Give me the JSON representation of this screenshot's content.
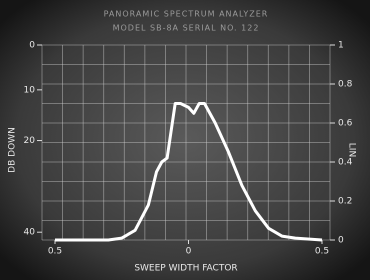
{
  "chart_data": {
    "type": "line",
    "title": "PANORAMIC SPECTRUM ANALYZER",
    "subtitle": "MODEL SB-8A  SERIAL NO. 122",
    "x_label": "SWEEP WIDTH FACTOR",
    "y_label": "LIN",
    "y2_label": "DB DOWN",
    "x": [
      -0.5,
      -0.3,
      -0.25,
      -0.2,
      -0.15,
      -0.12,
      -0.1,
      -0.08,
      -0.05,
      -0.03,
      0,
      0.02,
      0.04,
      0.06,
      0.1,
      0.15,
      0.2,
      0.25,
      0.3,
      0.35,
      0.4,
      0.5
    ],
    "values": [
      0,
      0,
      0.01,
      0.05,
      0.18,
      0.35,
      0.4,
      0.42,
      0.7,
      0.7,
      0.68,
      0.65,
      0.7,
      0.7,
      0.6,
      0.45,
      0.28,
      0.15,
      0.06,
      0.02,
      0.01,
      0
    ],
    "color": "#ffffff",
    "xlim": [
      -0.5,
      0.5
    ],
    "xticks": [
      {
        "value": -0.5,
        "label": "0.5"
      },
      0,
      0.5
    ],
    "ylim": [
      0,
      1
    ],
    "yticks": [
      0,
      0.2,
      0.4,
      0.6,
      0.8,
      1
    ],
    "y2lim": [
      0,
      1
    ],
    "y2ticks": [
      {
        "value": 1,
        "label": "0"
      },
      {
        "value": 0.77,
        "label": "10"
      },
      {
        "value": 0.51,
        "label": "20"
      },
      {
        "value": 0.04,
        "label": "40"
      }
    ],
    "grid": true
  }
}
